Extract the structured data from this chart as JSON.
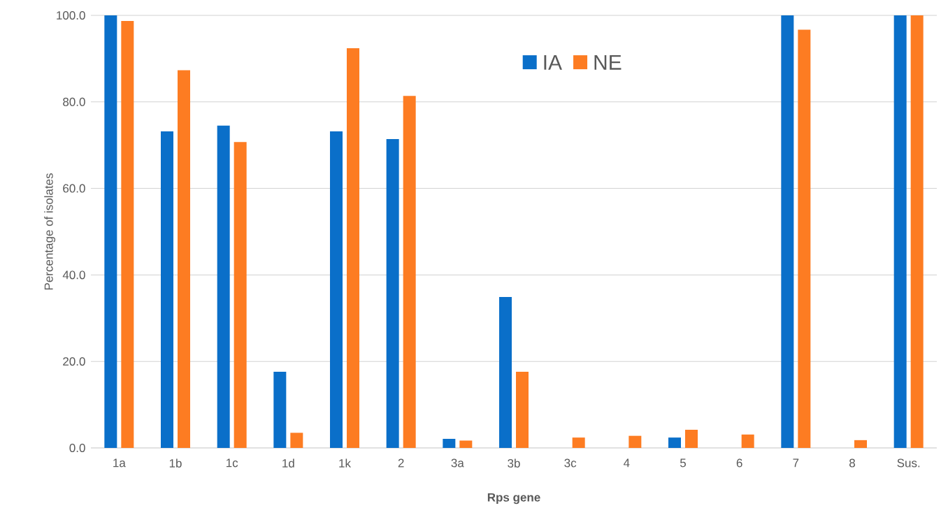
{
  "chart_data": {
    "type": "bar",
    "categories": [
      "1a",
      "1b",
      "1c",
      "1d",
      "1k",
      "2",
      "3a",
      "3b",
      "3c",
      "4",
      "5",
      "6",
      "7",
      "8",
      "Sus."
    ],
    "series": [
      {
        "name": "IA",
        "color": "#0a6fc9",
        "values": [
          100,
          73.2,
          74.5,
          17.6,
          73.2,
          71.4,
          2.1,
          34.9,
          0,
          0,
          2.4,
          0,
          100,
          0,
          100
        ]
      },
      {
        "name": "NE",
        "color": "#fd7c22",
        "values": [
          98.7,
          87.3,
          70.7,
          3.5,
          92.4,
          81.4,
          1.7,
          17.6,
          2.4,
          2.8,
          4.2,
          3.1,
          96.7,
          1.8,
          100
        ]
      }
    ],
    "xlabel": "Rps gene",
    "ylabel": "Percentage of isolates",
    "ylim": [
      0,
      100
    ],
    "yticks": [
      {
        "value": 0,
        "label": "0.0"
      },
      {
        "value": 20,
        "label": "20.0"
      },
      {
        "value": 40,
        "label": "40.0"
      },
      {
        "value": 60,
        "label": "60.0"
      },
      {
        "value": 80,
        "label": "80.0"
      },
      {
        "value": 100,
        "label": "100.0"
      }
    ],
    "grid": "y",
    "legend": "top"
  }
}
